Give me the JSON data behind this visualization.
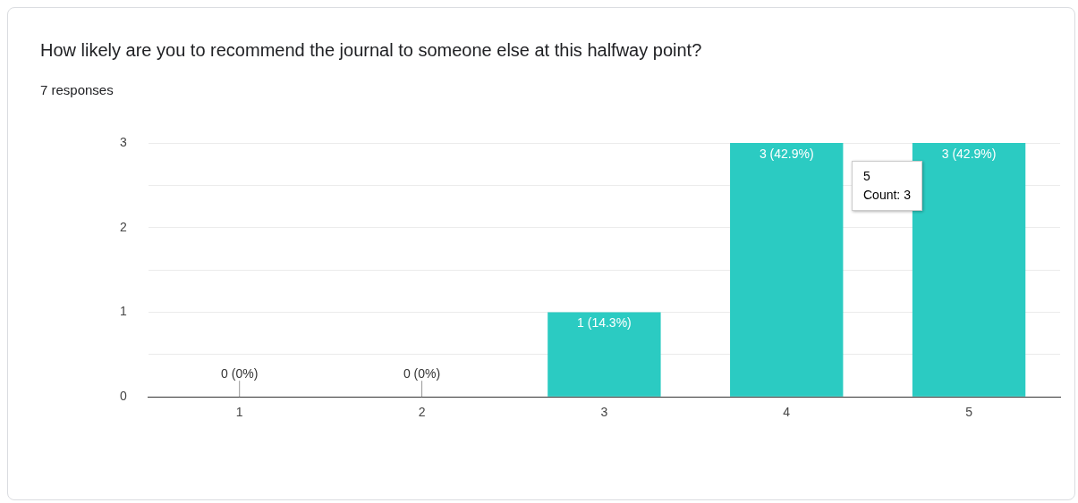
{
  "chart_data": {
    "type": "bar",
    "title": "How likely are you to recommend the journal to someone else at this halfway point?",
    "subtitle": "7 responses",
    "categories": [
      "1",
      "2",
      "3",
      "4",
      "5"
    ],
    "values": [
      0,
      0,
      1,
      3,
      3
    ],
    "value_labels": [
      "0 (0%)",
      "0 (0%)",
      "1 (14.3%)",
      "3 (42.9%)",
      "3 (42.9%)"
    ],
    "color": "#2bcbc2",
    "ylim": [
      0,
      3
    ],
    "yticks": [
      0,
      {
        "value": 0.5,
        "label": null
      },
      1,
      {
        "value": 1.5,
        "label": null
      },
      2,
      {
        "value": 2.5,
        "label": null
      },
      3
    ],
    "grid": "y",
    "annotations": [
      "5\nCount: 3"
    ]
  }
}
